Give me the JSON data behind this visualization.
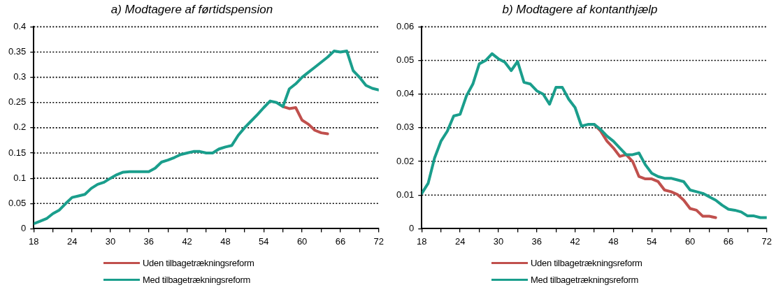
{
  "chart_data": [
    {
      "type": "line",
      "title": "a) Modtagere af førtidspension",
      "xlim": [
        18,
        72
      ],
      "xticks": [
        18,
        {
          "value": 21,
          "label": null
        },
        24,
        {
          "value": 27,
          "label": null
        },
        30,
        {
          "value": 33,
          "label": null
        },
        36,
        {
          "value": 39,
          "label": null
        },
        42,
        {
          "value": 45,
          "label": null
        },
        48,
        {
          "value": 51,
          "label": null
        },
        54,
        {
          "value": 57,
          "label": null
        },
        60,
        {
          "value": 63,
          "label": null
        },
        66,
        {
          "value": 69,
          "label": null
        },
        72
      ],
      "ylim": [
        0,
        0.4
      ],
      "yticks": [
        0,
        0.05,
        0.1,
        0.15,
        0.2,
        0.25,
        0.3,
        0.35,
        0.4
      ],
      "grid": "y",
      "legend": "bottom",
      "line_style": "solid",
      "marker": "none",
      "series": [
        {
          "name": "Uden tilbagetrækningsreform",
          "color": "#c0504d",
          "x": [
            57,
            58,
            59,
            60,
            61,
            62,
            63,
            64
          ],
          "values": [
            0.242,
            0.238,
            0.24,
            0.215,
            0.207,
            0.195,
            0.19,
            0.188
          ]
        },
        {
          "name": "Med tilbagetrækningsreform",
          "color": "#1a9e8c",
          "x": [
            18,
            19,
            20,
            21,
            22,
            23,
            24,
            25,
            26,
            27,
            28,
            29,
            30,
            31,
            32,
            33,
            34,
            35,
            36,
            37,
            38,
            39,
            40,
            41,
            42,
            43,
            44,
            45,
            46,
            47,
            48,
            49,
            50,
            51,
            52,
            53,
            54,
            55,
            56,
            57,
            58,
            59,
            60,
            61,
            62,
            63,
            64,
            65,
            66,
            67,
            68,
            69,
            70,
            71,
            72
          ],
          "values": [
            0.01,
            0.015,
            0.02,
            0.03,
            0.037,
            0.05,
            0.062,
            0.065,
            0.068,
            0.08,
            0.088,
            0.092,
            0.1,
            0.107,
            0.112,
            0.113,
            0.113,
            0.113,
            0.113,
            0.12,
            0.132,
            0.136,
            0.141,
            0.147,
            0.15,
            0.153,
            0.153,
            0.15,
            0.15,
            0.158,
            0.162,
            0.165,
            0.185,
            0.2,
            0.213,
            0.226,
            0.24,
            0.253,
            0.25,
            0.242,
            0.277,
            0.287,
            0.3,
            0.31,
            0.32,
            0.33,
            0.34,
            0.352,
            0.35,
            0.352,
            0.313,
            0.3,
            0.284,
            0.278,
            0.275
          ]
        }
      ]
    },
    {
      "type": "line",
      "title": "b) Modtagere af kontanthjælp",
      "xlim": [
        18,
        72
      ],
      "xticks": [
        18,
        {
          "value": 21,
          "label": null
        },
        24,
        {
          "value": 27,
          "label": null
        },
        30,
        {
          "value": 33,
          "label": null
        },
        36,
        {
          "value": 39,
          "label": null
        },
        42,
        {
          "value": 45,
          "label": null
        },
        48,
        {
          "value": 51,
          "label": null
        },
        54,
        {
          "value": 57,
          "label": null
        },
        60,
        {
          "value": 63,
          "label": null
        },
        66,
        {
          "value": 69,
          "label": null
        },
        72
      ],
      "ylim": [
        0,
        0.06
      ],
      "yticks": [
        0,
        0.01,
        0.02,
        0.03,
        0.04,
        0.05,
        0.06
      ],
      "grid": "y",
      "legend": "bottom",
      "line_style": "solid",
      "marker": "none",
      "series": [
        {
          "name": "Uden tilbagetrækningsreform",
          "color": "#c0504d",
          "x": [
            45,
            46,
            47,
            48,
            49,
            50,
            51,
            52,
            53,
            54,
            55,
            56,
            57,
            58,
            59,
            60,
            61,
            62,
            63,
            64
          ],
          "values": [
            0.031,
            0.029,
            0.026,
            0.024,
            0.0215,
            0.022,
            0.02,
            0.0155,
            0.0148,
            0.0148,
            0.014,
            0.0115,
            0.011,
            0.0102,
            0.0085,
            0.006,
            0.0055,
            0.0037,
            0.0037,
            0.0033
          ]
        },
        {
          "name": "Med tilbagetrækningsreform",
          "color": "#1a9e8c",
          "x": [
            18,
            19,
            20,
            21,
            22,
            23,
            24,
            25,
            26,
            27,
            28,
            29,
            30,
            31,
            32,
            33,
            34,
            35,
            36,
            37,
            38,
            39,
            40,
            41,
            42,
            43,
            44,
            45,
            46,
            47,
            48,
            49,
            50,
            51,
            52,
            53,
            54,
            55,
            56,
            57,
            58,
            59,
            60,
            61,
            62,
            63,
            64,
            65,
            66,
            67,
            68,
            69,
            70,
            71,
            72
          ],
          "values": [
            0.0105,
            0.0135,
            0.021,
            0.026,
            0.029,
            0.0335,
            0.034,
            0.0395,
            0.043,
            0.049,
            0.05,
            0.052,
            0.0505,
            0.0495,
            0.047,
            0.0497,
            0.0435,
            0.043,
            0.041,
            0.04,
            0.037,
            0.042,
            0.042,
            0.0385,
            0.036,
            0.0305,
            0.031,
            0.031,
            0.0295,
            0.0275,
            0.026,
            0.024,
            0.022,
            0.022,
            0.0225,
            0.019,
            0.0165,
            0.0155,
            0.015,
            0.015,
            0.0145,
            0.014,
            0.0115,
            0.011,
            0.0105,
            0.0095,
            0.0085,
            0.007,
            0.0058,
            0.0055,
            0.005,
            0.0038,
            0.0038,
            0.0033,
            0.0033
          ]
        }
      ]
    }
  ]
}
